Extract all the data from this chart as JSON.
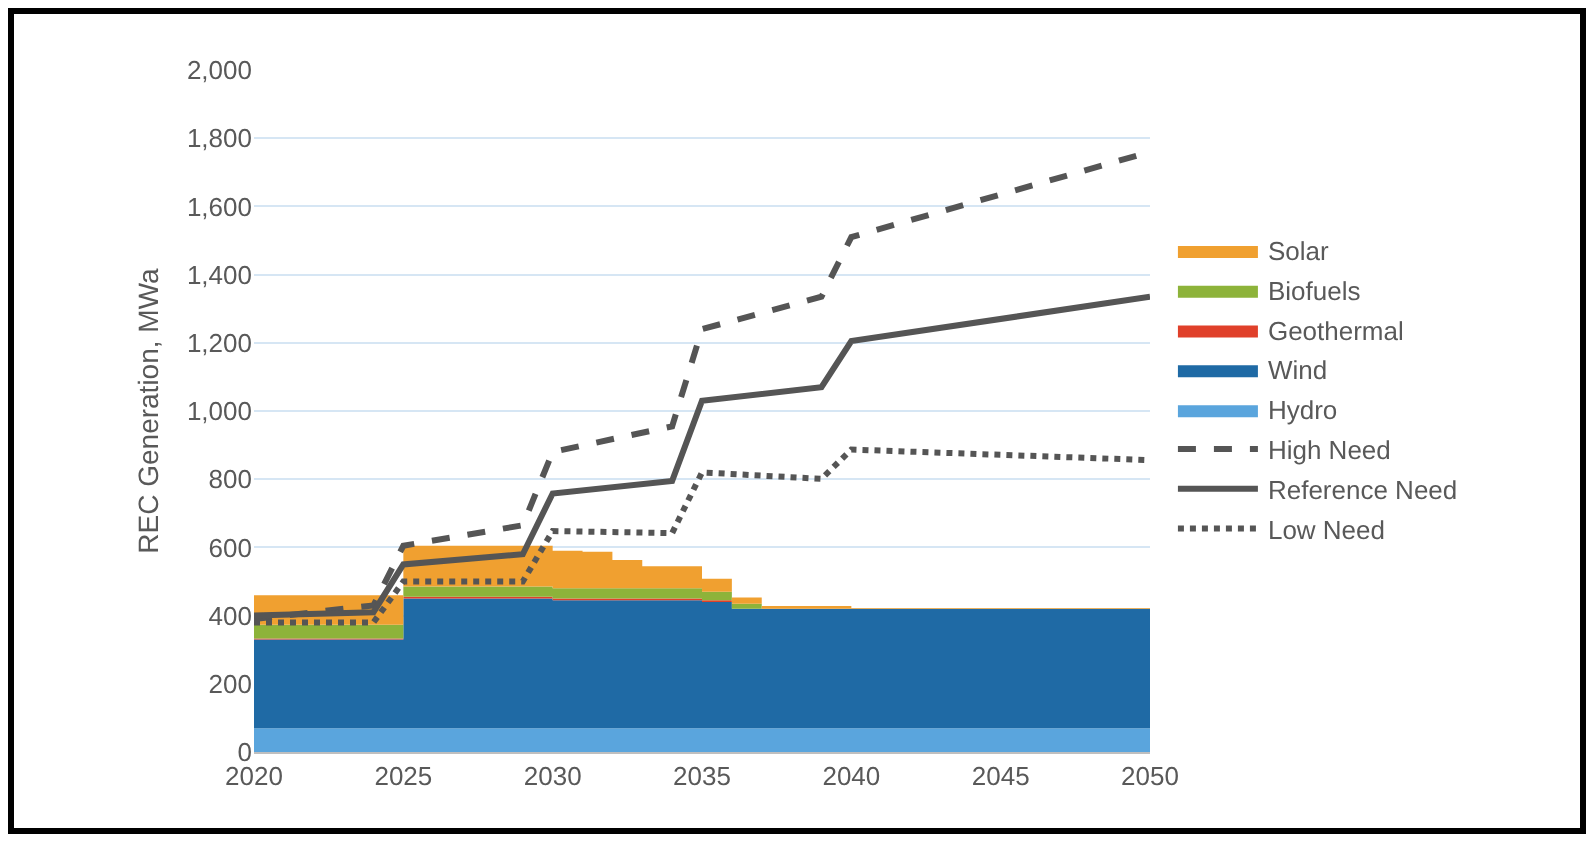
{
  "chart_data": {
    "type": "area",
    "stacked": true,
    "ylabel": "REC Generation, MWa",
    "x": [
      2020,
      2021,
      2022,
      2023,
      2024,
      2025,
      2026,
      2027,
      2028,
      2029,
      2030,
      2031,
      2032,
      2033,
      2034,
      2035,
      2036,
      2037,
      2038,
      2039,
      2040,
      2041,
      2042,
      2043,
      2044,
      2045,
      2046,
      2047,
      2048,
      2049,
      2050
    ],
    "series": [
      {
        "name": "Hydro",
        "color": "#5aa5dd",
        "values": [
          70,
          70,
          70,
          70,
          70,
          70,
          70,
          70,
          70,
          70,
          70,
          70,
          70,
          70,
          70,
          70,
          70,
          70,
          70,
          70,
          70,
          70,
          70,
          70,
          70,
          70,
          70,
          70,
          70,
          70,
          70
        ]
      },
      {
        "name": "Wind",
        "color": "#1f6aa5",
        "values": [
          260,
          260,
          260,
          260,
          260,
          380,
          380,
          380,
          380,
          380,
          375,
          375,
          375,
          375,
          375,
          370,
          350,
          350,
          350,
          350,
          350,
          350,
          350,
          350,
          350,
          350,
          350,
          350,
          350,
          350,
          350
        ]
      },
      {
        "name": "Geothermal",
        "color": "#e0402a",
        "values": [
          3,
          3,
          3,
          3,
          3,
          5,
          5,
          5,
          5,
          5,
          5,
          5,
          5,
          5,
          5,
          5,
          0,
          0,
          0,
          0,
          0,
          0,
          0,
          0,
          0,
          0,
          0,
          0,
          0,
          0,
          0
        ]
      },
      {
        "name": "Biofuels",
        "color": "#8db33a",
        "values": [
          40,
          40,
          40,
          40,
          40,
          30,
          30,
          30,
          30,
          30,
          30,
          30,
          30,
          30,
          30,
          25,
          15,
          0,
          0,
          0,
          0,
          0,
          0,
          0,
          0,
          0,
          0,
          0,
          0,
          0,
          0
        ]
      },
      {
        "name": "Solar",
        "color": "#f0a030",
        "values": [
          87,
          87,
          87,
          87,
          87,
          120,
          120,
          120,
          120,
          120,
          110,
          107,
          83,
          65,
          65,
          38,
          18,
          8,
          8,
          8,
          2,
          2,
          2,
          2,
          2,
          2,
          2,
          2,
          2,
          2,
          2
        ]
      },
      {
        "name": "High Need",
        "type": "line",
        "line_style": "dashed",
        "color": "#555555",
        "x": [
          2020,
          2024,
          2025,
          2029,
          2030,
          2034,
          2035,
          2039,
          2040,
          2050
        ],
        "values": [
          390,
          430,
          605,
          665,
          880,
          955,
          1240,
          1335,
          1510,
          1760
        ]
      },
      {
        "name": "Reference Need",
        "type": "line",
        "line_style": "solid",
        "color": "#555555",
        "x": [
          2020,
          2024,
          2025,
          2029,
          2030,
          2034,
          2035,
          2039,
          2040,
          2050
        ],
        "values": [
          400,
          410,
          550,
          580,
          758,
          795,
          1030,
          1070,
          1205,
          1335
        ]
      },
      {
        "name": "Low Need",
        "type": "line",
        "line_style": "dotted",
        "color": "#555555",
        "x": [
          2020,
          2024,
          2025,
          2029,
          2030,
          2034,
          2035,
          2039,
          2040,
          2050
        ],
        "values": [
          380,
          380,
          500,
          500,
          648,
          642,
          820,
          801,
          887,
          856
        ]
      }
    ],
    "xlim": [
      2020,
      2050
    ],
    "xticks": [
      2020,
      2025,
      2030,
      2035,
      2040,
      2045,
      2050
    ],
    "ylim": [
      0,
      2000
    ],
    "yticks": [
      0,
      200,
      400,
      600,
      800,
      {
        "value": 1000,
        "label": "1,000"
      },
      {
        "value": 1200,
        "label": "1,200"
      },
      {
        "value": 1400,
        "label": "1,400"
      },
      {
        "value": 1600,
        "label": "1,600"
      },
      {
        "value": 1800,
        "label": "1,800"
      },
      {
        "value": 2000,
        "label": "2,000"
      }
    ],
    "grid": "y",
    "legend": "right"
  }
}
